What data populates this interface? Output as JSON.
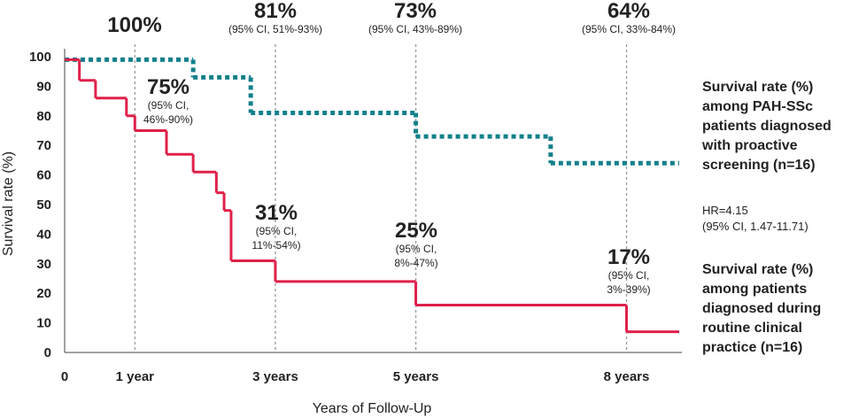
{
  "chart_data": {
    "type": "step",
    "x_label": "Years of Follow-Up",
    "y_label": "Survival rate (%)",
    "xlim": [
      0,
      8.75
    ],
    "ylim": [
      0,
      100
    ],
    "xticks": [
      0,
      {
        "value": 1,
        "label": "1 year"
      },
      {
        "value": 3,
        "label": "3 years"
      },
      {
        "value": 5,
        "label": "5 years"
      },
      {
        "value": 8,
        "label": "8 years"
      }
    ],
    "yticks": [
      0,
      10,
      20,
      30,
      40,
      50,
      60,
      70,
      80,
      90,
      100
    ],
    "grid": true,
    "series": [
      {
        "name": [
          "Survival rate (%)",
          "among PAH-SSc",
          "patients diagnosed",
          "with proactive",
          "screening (n=16)"
        ],
        "color": "#13808c",
        "style": "dotted",
        "x": [
          0,
          1.83,
          2.65,
          5,
          6.92,
          8.75
        ],
        "values": [
          99,
          93,
          81,
          73,
          64,
          64
        ]
      },
      {
        "name": [
          "Survival rate (%)",
          "among patients",
          "diagnosed during",
          "routine clinical",
          "practice (n=16)"
        ],
        "color": "#e0204a",
        "style": "solid",
        "x": [
          0,
          0.21,
          0.44,
          0.88,
          1.0,
          1.45,
          1.83,
          2.16,
          2.27,
          2.37,
          3.0,
          5.0,
          8.0,
          8.75
        ],
        "values": [
          99,
          92,
          86,
          80,
          75,
          67,
          61,
          54,
          48,
          31,
          24,
          16,
          7,
          7
        ]
      }
    ],
    "annotations": [
      {
        "text": "100%",
        "sub": []
      },
      {
        "text": "81%",
        "sub": [
          "(95% CI, 51%-93%)"
        ]
      },
      {
        "text": "73%",
        "sub": [
          "(95% CI, 43%-89%)"
        ]
      },
      {
        "text": "64%",
        "sub": [
          "(95% CI, 33%-84%)"
        ]
      },
      {
        "text": "75%",
        "sub": [
          "(95% CI,",
          "46%-90%)"
        ]
      },
      {
        "text": "31%",
        "sub": [
          "(95% CI,",
          "11%-54%)"
        ]
      },
      {
        "text": "25%",
        "sub": [
          "(95% CI,",
          "8%-47%)"
        ]
      },
      {
        "text": "17%",
        "sub": [
          "(95% CI,",
          "3%-39%)"
        ]
      }
    ],
    "hr_note": [
      "HR=4.15",
      "(95% CI, 1.47-11.71)"
    ]
  }
}
